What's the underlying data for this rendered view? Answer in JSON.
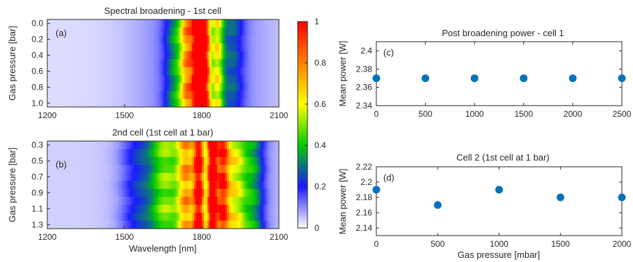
{
  "chart_data": [
    {
      "type": "heatmap",
      "title": "Spectral broadening - 1st cell",
      "panel_label": "(a)",
      "xlabel": "",
      "ylabel": "Gas pressure [bar]",
      "xlim": [
        1200,
        2100
      ],
      "xticks": [
        1200,
        1500,
        1800,
        2100
      ],
      "ylim": [
        0.0,
        1.0
      ],
      "yticks": [
        "0.0",
        "0.2",
        "0.4",
        "0.6",
        "0.8",
        "1.0"
      ],
      "rows": [
        0.0,
        0.1,
        0.2,
        0.3,
        0.4,
        0.5,
        0.6,
        0.7,
        0.8,
        0.9,
        1.0
      ],
      "spectrum_peaks": [
        {
          "center": 1785,
          "width": 16,
          "amp": 1.0
        },
        {
          "center": 1815,
          "width": 14,
          "amp": 0.75
        },
        {
          "center": 1745,
          "width": 20,
          "amp": 0.55
        },
        {
          "center": 1860,
          "width": 18,
          "amp": 0.45
        },
        {
          "center": 1700,
          "width": 30,
          "amp": 0.22
        },
        {
          "center": 1920,
          "width": 30,
          "amp": 0.15
        }
      ],
      "background_level": 0.03
    },
    {
      "type": "heatmap",
      "title": "2nd cell (1st cell at 1 bar)",
      "panel_label": "(b)",
      "xlabel": "Wavelength [nm]",
      "ylabel": "Gas pressure [bar]",
      "xlim": [
        1200,
        2100
      ],
      "xticks": [
        1200,
        1500,
        1800,
        2100
      ],
      "ylim": [
        0.3,
        1.3
      ],
      "yticks": [
        "0.3",
        "0.5",
        "0.7",
        "0.9",
        "1.1",
        "1.3"
      ],
      "rows": [
        0.3,
        0.4,
        0.5,
        0.6,
        0.7,
        0.8,
        0.9,
        1.0,
        1.1,
        1.2,
        1.3
      ],
      "spectrum_peaks": [
        {
          "center": 1840,
          "width": 14,
          "amp": 1.0
        },
        {
          "center": 1790,
          "width": 16,
          "amp": 0.85
        },
        {
          "center": 1880,
          "width": 18,
          "amp": 0.7
        },
        {
          "center": 1740,
          "width": 25,
          "amp": 0.55
        },
        {
          "center": 1930,
          "width": 30,
          "amp": 0.45
        },
        {
          "center": 1660,
          "width": 40,
          "amp": 0.35
        },
        {
          "center": 2000,
          "width": 30,
          "amp": 0.25
        },
        {
          "center": 1560,
          "width": 50,
          "amp": 0.15
        }
      ],
      "background_level": 0.04
    },
    {
      "type": "colorbar",
      "ticks": [
        "0",
        "0.2",
        "0.4",
        "0.6",
        "0.8",
        "1"
      ],
      "range": [
        0,
        1
      ],
      "colormap": [
        "#ffffff",
        "#1a1aff",
        "#00cc00",
        "#ffff00",
        "#ff8000",
        "#ff0000"
      ]
    },
    {
      "type": "scatter",
      "title": "Post broadening power - cell 1",
      "panel_label": "(c)",
      "xlabel": "",
      "ylabel": "Mean power [W]",
      "x": [
        0,
        500,
        1000,
        1500,
        2000,
        2500
      ],
      "y": [
        2.37,
        2.37,
        2.37,
        2.37,
        2.37,
        2.37
      ],
      "xlim": [
        0,
        2500
      ],
      "ylim": [
        2.34,
        2.41
      ],
      "xticks": [
        "0",
        "500",
        "1000",
        "1500",
        "2000",
        "2500"
      ],
      "yticks": [
        "2.34",
        "2.36",
        "2.38",
        "2.4"
      ],
      "ytick_values": [
        2.34,
        2.36,
        2.38,
        2.4
      ],
      "marker_color": "#0072bd"
    },
    {
      "type": "scatter",
      "title": "Cell 2 (1st cell at 1 bar)",
      "panel_label": "(d)",
      "xlabel": "Gas pressure [mbar]",
      "ylabel": "Mean power [W]",
      "x": [
        0,
        500,
        1000,
        1500,
        2000
      ],
      "y": [
        2.19,
        2.17,
        2.19,
        2.18,
        2.18
      ],
      "xlim": [
        0,
        2000
      ],
      "ylim": [
        2.13,
        2.22
      ],
      "xticks": [
        "0",
        "500",
        "1000",
        "1500",
        "2000"
      ],
      "yticks": [
        "2.14",
        "2.16",
        "2.18",
        "2.2",
        "2.22"
      ],
      "ytick_values": [
        2.14,
        2.16,
        2.18,
        2.2,
        2.22
      ],
      "marker_color": "#0072bd"
    }
  ]
}
